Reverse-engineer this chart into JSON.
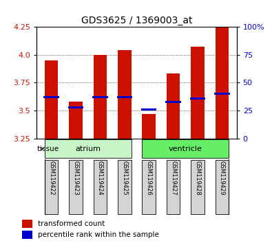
{
  "title": "GDS3625 / 1369003_at",
  "samples": [
    "GSM119422",
    "GSM119423",
    "GSM119424",
    "GSM119425",
    "GSM119426",
    "GSM119427",
    "GSM119428",
    "GSM119429"
  ],
  "transformed_counts": [
    3.95,
    3.58,
    4.0,
    4.04,
    3.47,
    3.83,
    4.07,
    4.25
  ],
  "percentile_ranks": [
    37,
    28,
    37,
    37,
    26,
    33,
    36,
    40
  ],
  "ymin": 3.25,
  "ymax": 4.25,
  "yticks": [
    3.25,
    3.5,
    3.75,
    4.0,
    4.25
  ],
  "right_yticks": [
    0,
    25,
    50,
    75,
    100
  ],
  "tissue_colors": [
    "#c8f5c8",
    "#66ee66"
  ],
  "bar_color": "#cc1100",
  "percentile_color": "#0000cc",
  "bg_color": "#ffffff",
  "left_label_color": "#cc1100",
  "right_label_color": "#0000cc",
  "bar_width": 0.55,
  "base_value": 3.25,
  "sample_box_color": "#d4d4d4",
  "legend_red_label": "transformed count",
  "legend_blue_label": "percentile rank within the sample"
}
